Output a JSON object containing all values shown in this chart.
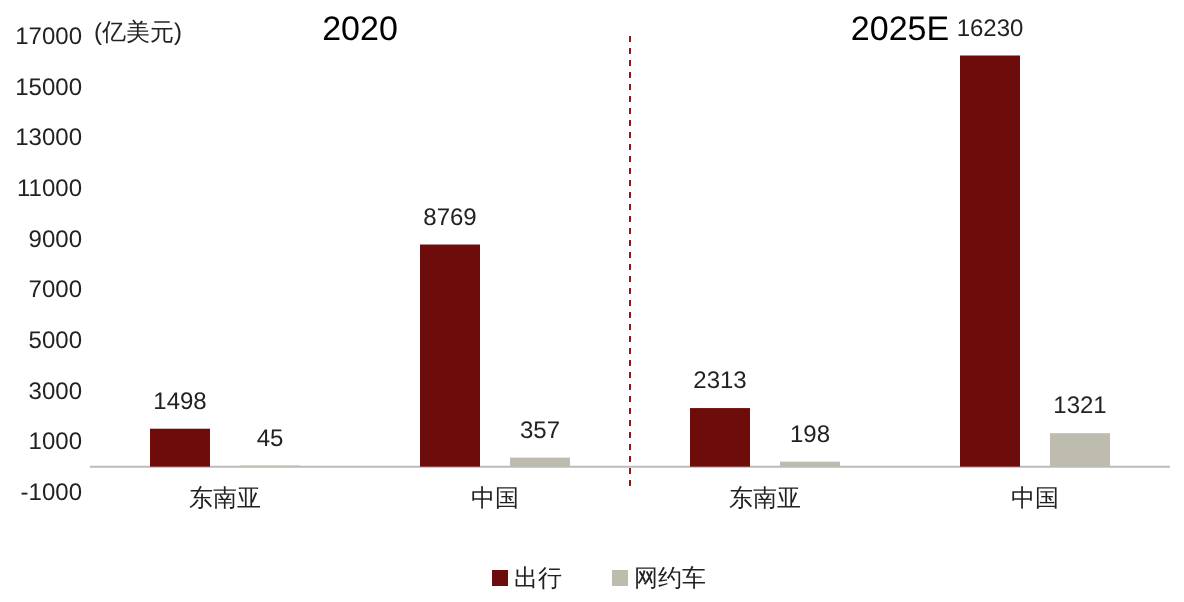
{
  "chart_data": [
    {
      "type": "bar",
      "title": "2020",
      "ylabel": "(亿美元)",
      "categories": [
        "东南亚",
        "中国"
      ],
      "series": [
        {
          "name": "出行",
          "color": "#6e0b0b",
          "values": [
            1498,
            8769
          ]
        },
        {
          "name": "网约车",
          "color": "#bdbcae",
          "values": [
            45,
            357
          ]
        }
      ],
      "ylim": [
        -1000,
        17000
      ],
      "yticks": [
        -1000,
        1000,
        3000,
        5000,
        7000,
        9000,
        11000,
        13000,
        15000,
        17000
      ],
      "data_labels": true,
      "legend": "bottom",
      "grid": false
    },
    {
      "type": "bar",
      "title": "2025E",
      "categories": [
        "东南亚",
        "中国"
      ],
      "series": [
        {
          "color": "#6e0b0b",
          "values": [
            2313,
            16230
          ]
        },
        {
          "color": "#bdbcae",
          "values": [
            198,
            1321
          ]
        }
      ],
      "ylim": [
        -1000,
        17000
      ],
      "data_labels": true,
      "tick_labels": "x",
      "grid": false
    }
  ]
}
